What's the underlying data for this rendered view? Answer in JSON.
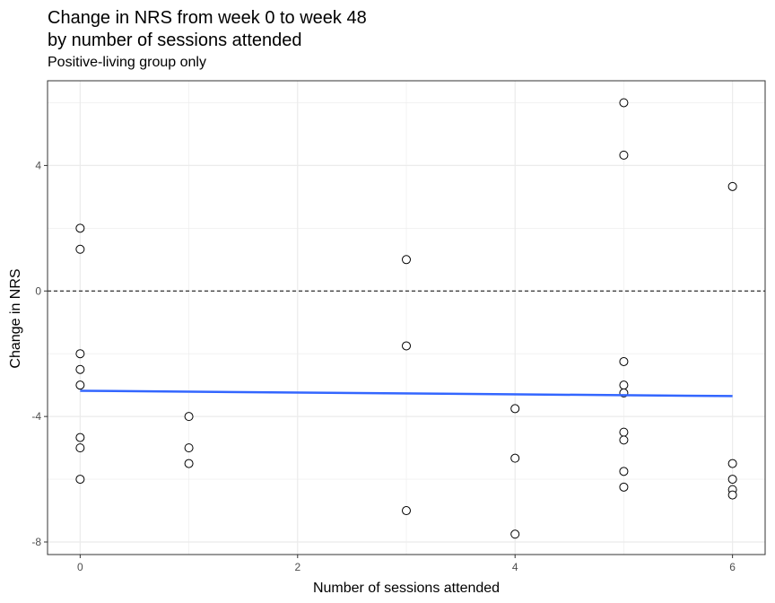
{
  "chart_data": {
    "type": "scatter",
    "title_line1": "Change in NRS from week 0 to week 48",
    "title_line2": "by number of sessions attended",
    "subtitle": "Positive-living group only",
    "xlabel": "Number of sessions attended",
    "ylabel": "Change in NRS",
    "xlim": [
      -0.3,
      6.3
    ],
    "ylim": [
      -8.4,
      6.7
    ],
    "x_ticks": [
      0,
      2,
      4,
      6
    ],
    "x_tick_labels": [
      "0",
      "2",
      "4",
      "6"
    ],
    "y_ticks": [
      -8,
      -4,
      0,
      4
    ],
    "y_tick_labels": [
      "-8",
      "-4",
      "0",
      "4"
    ],
    "grid": true,
    "reference_line": {
      "y": 0,
      "style": "dashed"
    },
    "points": [
      {
        "x": 0,
        "y": 2
      },
      {
        "x": 0,
        "y": 1.33
      },
      {
        "x": 0,
        "y": -2
      },
      {
        "x": 0,
        "y": -2.5
      },
      {
        "x": 0,
        "y": -3
      },
      {
        "x": 0,
        "y": -4.67
      },
      {
        "x": 0,
        "y": -5
      },
      {
        "x": 0,
        "y": -6
      },
      {
        "x": 1,
        "y": -4
      },
      {
        "x": 1,
        "y": -5
      },
      {
        "x": 1,
        "y": -5.5
      },
      {
        "x": 3,
        "y": 1
      },
      {
        "x": 3,
        "y": -1.75
      },
      {
        "x": 3,
        "y": -7
      },
      {
        "x": 4,
        "y": -3.75
      },
      {
        "x": 4,
        "y": -5.33
      },
      {
        "x": 4,
        "y": -7.75
      },
      {
        "x": 5,
        "y": 6
      },
      {
        "x": 5,
        "y": 4.33
      },
      {
        "x": 5,
        "y": -2.25
      },
      {
        "x": 5,
        "y": -3
      },
      {
        "x": 5,
        "y": -3.25
      },
      {
        "x": 5,
        "y": -4.5
      },
      {
        "x": 5,
        "y": -4.75
      },
      {
        "x": 5,
        "y": -5.75
      },
      {
        "x": 5,
        "y": -6.25
      },
      {
        "x": 6,
        "y": 3.33
      },
      {
        "x": 6,
        "y": -5.5
      },
      {
        "x": 6,
        "y": -6
      },
      {
        "x": 6,
        "y": -6.33
      },
      {
        "x": 6,
        "y": -6.5
      }
    ],
    "trend_line": {
      "x": [
        0,
        6
      ],
      "y": [
        -3.18,
        -3.35
      ],
      "color": "#3366ff"
    },
    "colors": {
      "point_stroke": "#000000",
      "point_fill": "#ffffff",
      "grid": "#ebebeb",
      "panel_border": "#333333"
    }
  }
}
